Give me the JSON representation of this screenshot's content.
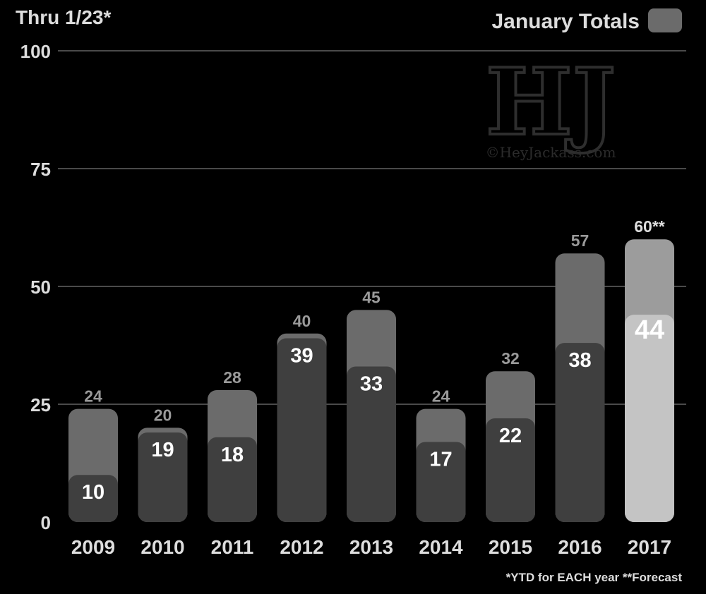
{
  "chart_data": {
    "type": "bar",
    "title_left": "Thru 1/23*",
    "legend": {
      "label": "January Totals",
      "color": "#6b6b6b"
    },
    "categories": [
      "2009",
      "2010",
      "2011",
      "2012",
      "2013",
      "2014",
      "2015",
      "2016",
      "2017"
    ],
    "series": [
      {
        "name": "January Totals",
        "values": [
          24,
          20,
          28,
          40,
          45,
          24,
          32,
          57,
          60
        ],
        "labels": [
          "24",
          "20",
          "28",
          "40",
          "45",
          "24",
          "32",
          "57",
          "60**"
        ]
      },
      {
        "name": "Thru 1/23*",
        "values": [
          10,
          19,
          18,
          39,
          33,
          17,
          22,
          38,
          44
        ],
        "labels": [
          "10",
          "19",
          "18",
          "39",
          "33",
          "17",
          "22",
          "38",
          "44"
        ]
      }
    ],
    "yticks": [
      "0",
      "25",
      "50",
      "75",
      "100"
    ],
    "ylim": [
      0,
      100
    ],
    "grid": true,
    "footnote": "*YTD for EACH year **Forecast",
    "watermark": {
      "logo": "HJ",
      "credit": "©HeyJackass.com"
    },
    "colors": {
      "total_bar": "#6b6b6b",
      "ytd_bar": "#3f3f3f",
      "forecast_total": "#9c9c9c",
      "forecast_ytd": "#c4c4c4",
      "background": "#000000",
      "grid": "#4a4a4a",
      "text": "#dddddd",
      "value_label": "#9a9a9a"
    }
  }
}
